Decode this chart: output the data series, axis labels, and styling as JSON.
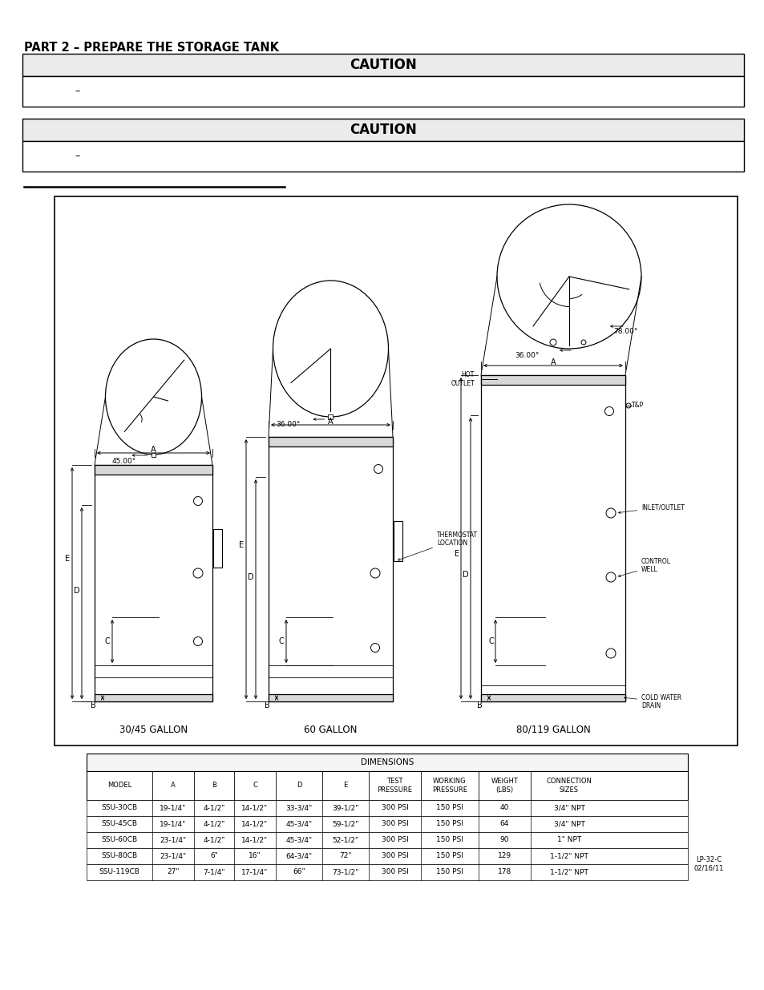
{
  "title": "PART 2 – PREPARE THE STORAGE TANK",
  "caution_boxes": [
    {
      "header": "CAUTION",
      "body": "–"
    },
    {
      "header": "CAUTION",
      "body": "–"
    }
  ],
  "diagram_title": "DIMENSIONS",
  "table_headers": [
    "MODEL",
    "A",
    "B",
    "C",
    "D",
    "E",
    "TEST\nPRESSURE",
    "WORKING\nPRESSURE",
    "WEIGHT\n(LBS)",
    "CONNECTION\nSIZES"
  ],
  "table_data": [
    [
      "SSU-30CB",
      "19-1/4\"",
      "4-1/2\"",
      "14-1/2\"",
      "33-3/4\"",
      "39-1/2\"",
      "300 PSI",
      "150 PSI",
      "40",
      "3/4\" NPT"
    ],
    [
      "SSU-45CB",
      "19-1/4\"",
      "4-1/2\"",
      "14-1/2\"",
      "45-3/4\"",
      "59-1/2\"",
      "300 PSI",
      "150 PSI",
      "64",
      "3/4\" NPT"
    ],
    [
      "SSU-60CB",
      "23-1/4\"",
      "4-1/2\"",
      "14-1/2\"",
      "45-3/4\"",
      "52-1/2\"",
      "300 PSI",
      "150 PSI",
      "90",
      "1\" NPT"
    ],
    [
      "SSU-80CB",
      "23-1/4\"",
      "6\"",
      "16\"",
      "64-3/4\"",
      "72\"",
      "300 PSI",
      "150 PSI",
      "129",
      "1-1/2\" NPT"
    ],
    [
      "SSU-119CB",
      "27\"",
      "7-1/4\"",
      "17-1/4\"",
      "66\"",
      "73-1/2\"",
      "300 PSI",
      "150 PSI",
      "178",
      "1-1/2\" NPT"
    ]
  ],
  "lp_label": "LP-32-C\n02/16/11",
  "bg_color": "#ffffff",
  "box_header_bg": "#ebebeb",
  "box_border": "#000000",
  "text_color": "#000000",
  "line_color": "#000000"
}
